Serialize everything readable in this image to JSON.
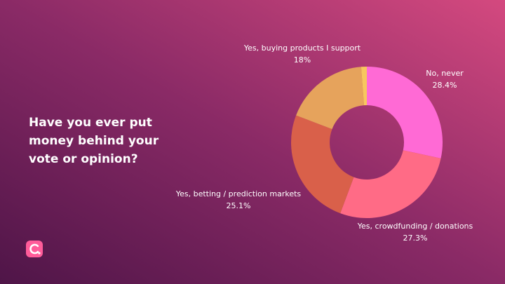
{
  "chart_data": {
    "type": "donut",
    "title": [
      "Have you ever put",
      "money behind your",
      "vote or opinion?"
    ],
    "categories": [
      "No, never",
      "Yes, crowdfunding / donations",
      "Yes, betting / prediction markets",
      "Yes, buying products I support",
      null
    ],
    "values": [
      28.4,
      27.3,
      25.1,
      18,
      1.2
    ],
    "value_labels": [
      "28.4%",
      "27.3%",
      "25.1%",
      "18%",
      null
    ],
    "colors": [
      "#ff6ad5",
      "#ff6b86",
      "#d9604a",
      "#e6a35c",
      "#f7c75e"
    ]
  }
}
